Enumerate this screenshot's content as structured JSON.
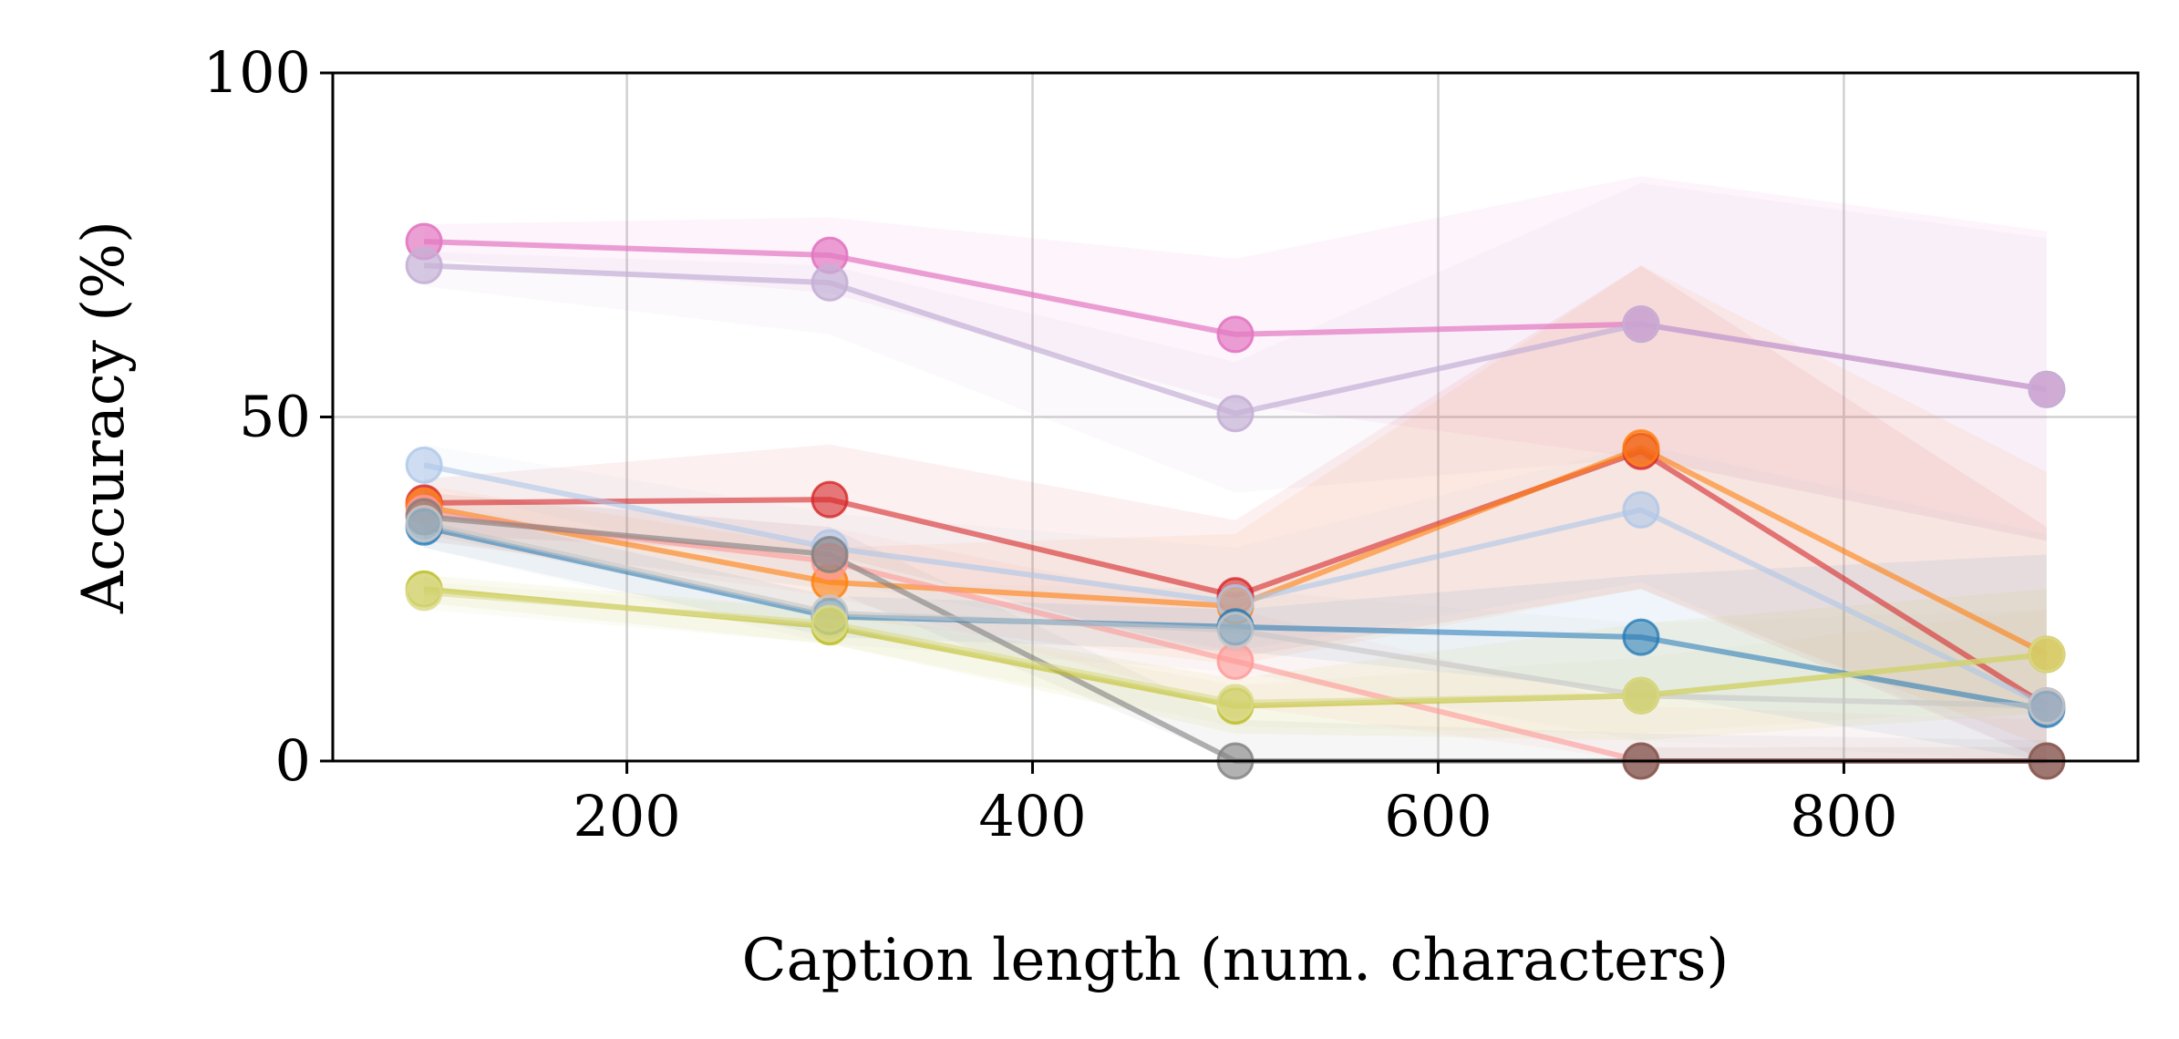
{
  "chart_data": {
    "type": "line",
    "title": "",
    "xlabel": "Caption length (num. characters)",
    "ylabel": "Accuracy (%)",
    "xlim": [
      55,
      945
    ],
    "ylim": [
      0,
      100
    ],
    "xticks": [
      200,
      400,
      600,
      800
    ],
    "yticks": [
      0,
      50,
      100
    ],
    "grid": true,
    "legend": "none",
    "x": [
      100,
      300,
      500,
      700,
      900
    ],
    "series": [
      {
        "color": "#e377c2",
        "values": [
          75.5,
          73.5,
          62,
          63.5,
          54
        ],
        "upper": [
          78,
          79,
          73,
          85,
          77
        ],
        "lower": [
          73,
          68,
          52,
          44,
          32
        ],
        "opacity": 0.7
      },
      {
        "color": "#c5b0d5",
        "values": [
          72,
          69.5,
          50.5,
          63.5,
          54
        ],
        "upper": [
          74,
          72,
          58,
          84,
          76
        ],
        "lower": [
          69,
          62,
          39,
          44,
          32
        ],
        "opacity": 0.7
      },
      {
        "color": "#d62728",
        "values": [
          37.5,
          38,
          24,
          45,
          8
        ],
        "upper": [
          41,
          46,
          35,
          72,
          34
        ],
        "lower": [
          33,
          30,
          15,
          25,
          0
        ],
        "opacity": 0.6
      },
      {
        "color": "#ff7f0e",
        "values": [
          37,
          26,
          22.5,
          45.5,
          15.5
        ],
        "upper": [
          40,
          31,
          33,
          72,
          42
        ],
        "lower": [
          33,
          21,
          14,
          25,
          2
        ],
        "opacity": 0.6
      },
      {
        "color": "#aec7e8",
        "values": [
          43,
          31,
          23,
          36.5,
          8
        ],
        "upper": [
          46,
          36,
          31,
          46,
          33
        ],
        "lower": [
          40,
          26,
          16,
          26,
          0
        ],
        "opacity": 0.6
      },
      {
        "color": "#ff9896",
        "values": [
          36,
          29,
          14.5,
          0,
          0
        ],
        "upper": [
          39,
          34,
          22,
          8,
          6
        ],
        "lower": [
          32,
          24,
          8,
          0,
          0
        ],
        "opacity": 0.6
      },
      {
        "color": "#7f7f7f",
        "values": [
          35.5,
          30,
          0,
          0,
          0
        ],
        "upper": [
          39,
          34,
          6,
          4,
          3
        ],
        "lower": [
          32,
          25,
          0,
          0,
          0
        ],
        "opacity": 0.6
      },
      {
        "color": "#1f77b4",
        "values": [
          34,
          21,
          19.5,
          18,
          7.5
        ],
        "upper": [
          37,
          24,
          22,
          27,
          30
        ],
        "lower": [
          31,
          18,
          16,
          10,
          0
        ],
        "opacity": 0.55
      },
      {
        "color": "#c7c7c7",
        "values": [
          34.5,
          21.5,
          19,
          9.5,
          8
        ],
        "upper": [
          38,
          26,
          25,
          20,
          22
        ],
        "lower": [
          31,
          17,
          13,
          3,
          0
        ],
        "opacity": 0.6
      },
      {
        "color": "#bcbd22",
        "values": [
          25,
          19.5,
          8,
          9.5,
          15.5
        ],
        "upper": [
          27,
          22,
          12,
          20,
          25
        ],
        "lower": [
          23,
          17,
          4,
          3,
          7
        ],
        "opacity": 0.6
      },
      {
        "color": "#dbdb8d",
        "values": [
          24.5,
          20,
          8.5,
          9.5,
          15.5
        ],
        "upper": [
          26,
          22,
          11,
          15,
          22
        ],
        "lower": [
          22,
          17,
          5,
          4,
          8
        ],
        "opacity": 0.6
      },
      {
        "color": "#8c564b",
        "values": [
          null,
          null,
          null,
          0,
          0
        ],
        "upper": [
          null,
          null,
          null,
          2,
          2
        ],
        "lower": [
          null,
          null,
          null,
          0,
          0
        ],
        "opacity": 0.5
      }
    ]
  }
}
